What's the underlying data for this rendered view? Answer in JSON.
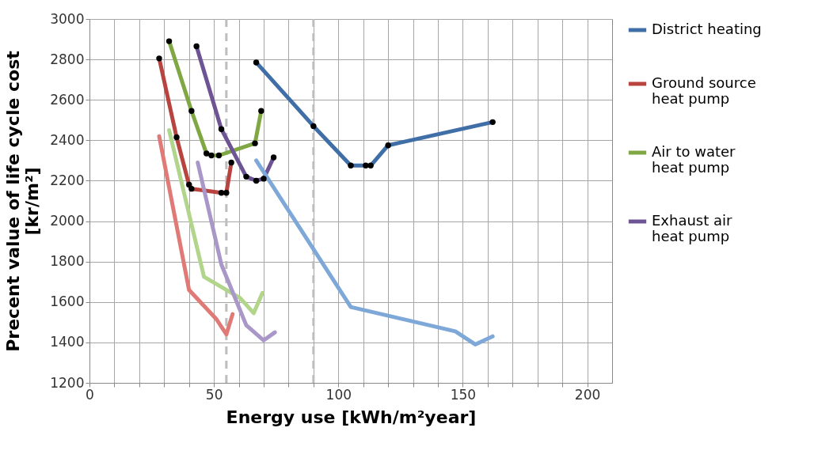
{
  "chart_data": {
    "type": "line",
    "xlabel": "Energy use [kWh/m²year]",
    "ylabel": "Precent value of life cycle cost [kr/m²]",
    "xlim": [
      0,
      210
    ],
    "ylim": [
      1200,
      3000
    ],
    "xticks": [
      0,
      {
        "value": 10,
        "label": null
      },
      {
        "value": 20,
        "label": null
      },
      {
        "value": 30,
        "label": null
      },
      {
        "value": 40,
        "label": null
      },
      50,
      {
        "value": 60,
        "label": null
      },
      {
        "value": 70,
        "label": null
      },
      {
        "value": 80,
        "label": null
      },
      {
        "value": 90,
        "label": null
      },
      100,
      {
        "value": 110,
        "label": null
      },
      {
        "value": 120,
        "label": null
      },
      {
        "value": 130,
        "label": null
      },
      {
        "value": 140,
        "label": null
      },
      150,
      {
        "value": 160,
        "label": null
      },
      {
        "value": 170,
        "label": null
      },
      {
        "value": 180,
        "label": null
      },
      {
        "value": 190,
        "label": null
      },
      200
    ],
    "yticks": [
      1200,
      1400,
      1600,
      1800,
      2000,
      2200,
      2400,
      2600,
      2800,
      3000
    ],
    "grid": true,
    "legend": "right",
    "series": [
      {
        "name": "District heating",
        "color": "#3f6fa6",
        "marker": "circle",
        "x": [
          67,
          90,
          105,
          111,
          113,
          120,
          162
        ],
        "values": [
          2785,
          2470,
          2275,
          2275,
          2275,
          2375,
          2490
        ]
      },
      {
        "name": "Ground source heat pump",
        "color": "#b84440",
        "marker": "circle",
        "x": [
          28,
          35,
          40,
          41,
          53,
          55,
          57
        ],
        "values": [
          2805,
          2415,
          2180,
          2160,
          2140,
          2140,
          2290
        ]
      },
      {
        "name": "Air to water heat pump",
        "color": "#7fa844",
        "marker": "circle",
        "x": [
          32,
          41,
          47,
          49,
          52,
          66.5,
          69
        ],
        "values": [
          2890,
          2545,
          2335,
          2325,
          2325,
          2385,
          2545
        ]
      },
      {
        "name": "Exhaust air heat pump",
        "color": "#6e5494",
        "marker": "circle",
        "x": [
          43,
          53,
          63,
          67,
          70,
          74
        ],
        "values": [
          2865,
          2455,
          2220,
          2200,
          2210,
          2315
        ]
      },
      {
        "color": "#7ea8d8",
        "marker": "none",
        "x": [
          67,
          105,
          147,
          155,
          162
        ],
        "values": [
          2300,
          1575,
          1455,
          1390,
          1430
        ]
      },
      {
        "color": "#e07a76",
        "marker": "none",
        "x": [
          28,
          40,
          51,
          55,
          57.5
        ],
        "values": [
          2420,
          1660,
          1515,
          1440,
          1540
        ]
      },
      {
        "color": "#b2d58c",
        "marker": "none",
        "x": [
          32,
          46,
          60.5,
          66,
          69.5
        ],
        "values": [
          2450,
          1725,
          1620,
          1545,
          1645
        ]
      },
      {
        "color": "#a897c8",
        "marker": "none",
        "x": [
          43.5,
          53,
          63,
          70,
          74.5
        ],
        "values": [
          2290,
          1785,
          1485,
          1410,
          1450
        ]
      }
    ],
    "ref_lines": [
      {
        "axis": "x",
        "value": 55,
        "color": "#bdbdbd",
        "line_style": "dashed"
      },
      {
        "axis": "x",
        "value": 90,
        "color": "#bdbdbd",
        "line_style": "dashed"
      }
    ]
  }
}
